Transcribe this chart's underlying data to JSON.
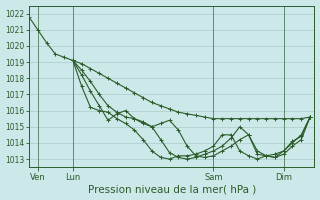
{
  "bg_color": "#cce8e8",
  "grid_color": "#aacccc",
  "line_color": "#2a5c2a",
  "xlabel": "Pression niveau de la mer( hPa )",
  "xlabel_fontsize": 7.5,
  "tick_color": "#2a5c2a",
  "ylim": [
    1012.5,
    1022.5
  ],
  "yticks": [
    1013,
    1014,
    1015,
    1016,
    1017,
    1018,
    1019,
    1020,
    1021,
    1022
  ],
  "xlim": [
    0,
    195
  ],
  "xtick_labels": [
    "Ven",
    "Lun",
    "Sam",
    "Dim"
  ],
  "xtick_positions": [
    6,
    30,
    126,
    174
  ],
  "vline_positions": [
    6,
    30,
    126,
    174
  ],
  "lines": [
    {
      "x": [
        0,
        6,
        12,
        18,
        24,
        30,
        36,
        42,
        48,
        54,
        60,
        66,
        72,
        78,
        84,
        90,
        96,
        102,
        108,
        114,
        120,
        126,
        132,
        138,
        144,
        150,
        156,
        162,
        168,
        174,
        180,
        186,
        192
      ],
      "y": [
        1021.8,
        1021.0,
        1020.2,
        1019.5,
        1019.3,
        1019.1,
        1018.9,
        1018.6,
        1018.3,
        1018.0,
        1017.7,
        1017.4,
        1017.1,
        1016.8,
        1016.5,
        1016.3,
        1016.1,
        1015.9,
        1015.8,
        1015.7,
        1015.6,
        1015.5,
        1015.5,
        1015.5,
        1015.5,
        1015.5,
        1015.5,
        1015.5,
        1015.5,
        1015.5,
        1015.5,
        1015.5,
        1015.6
      ]
    },
    {
      "x": [
        30,
        36,
        42,
        48,
        54,
        60,
        66,
        72,
        78,
        84,
        90,
        96,
        102,
        108,
        114,
        120,
        126,
        132,
        138,
        144,
        150,
        156,
        162,
        168,
        174,
        180,
        186,
        192
      ],
      "y": [
        1019.1,
        1018.5,
        1017.8,
        1017.0,
        1016.3,
        1015.9,
        1015.6,
        1015.5,
        1015.2,
        1015.0,
        1015.2,
        1015.4,
        1014.8,
        1013.8,
        1013.2,
        1013.1,
        1013.2,
        1013.5,
        1013.8,
        1014.2,
        1014.5,
        1013.3,
        1013.2,
        1013.1,
        1013.5,
        1014.1,
        1014.4,
        1015.6
      ]
    },
    {
      "x": [
        30,
        36,
        42,
        48,
        54,
        60,
        66,
        72,
        78,
        84,
        90,
        96,
        102,
        108,
        114,
        120,
        126,
        132,
        138,
        144,
        150,
        156,
        162,
        168,
        174,
        180,
        186,
        192
      ],
      "y": [
        1019.1,
        1018.2,
        1017.2,
        1016.3,
        1015.4,
        1015.8,
        1016.0,
        1015.5,
        1015.3,
        1015.0,
        1014.2,
        1013.4,
        1013.1,
        1013.0,
        1013.1,
        1013.3,
        1013.5,
        1013.8,
        1014.3,
        1015.0,
        1014.5,
        1013.5,
        1013.2,
        1013.1,
        1013.3,
        1013.8,
        1014.2,
        1015.6
      ]
    },
    {
      "x": [
        30,
        36,
        42,
        48,
        54,
        60,
        66,
        72,
        78,
        84,
        90,
        96,
        102,
        108,
        114,
        120,
        126,
        132,
        138,
        144,
        150,
        156,
        162,
        168,
        174,
        180,
        186,
        192
      ],
      "y": [
        1019.1,
        1017.5,
        1016.2,
        1016.0,
        1015.9,
        1015.5,
        1015.2,
        1014.8,
        1014.2,
        1013.5,
        1013.1,
        1013.0,
        1013.2,
        1013.2,
        1013.3,
        1013.5,
        1013.8,
        1014.5,
        1014.5,
        1013.5,
        1013.2,
        1013.0,
        1013.2,
        1013.3,
        1013.5,
        1014.0,
        1014.5,
        1015.6
      ]
    }
  ]
}
